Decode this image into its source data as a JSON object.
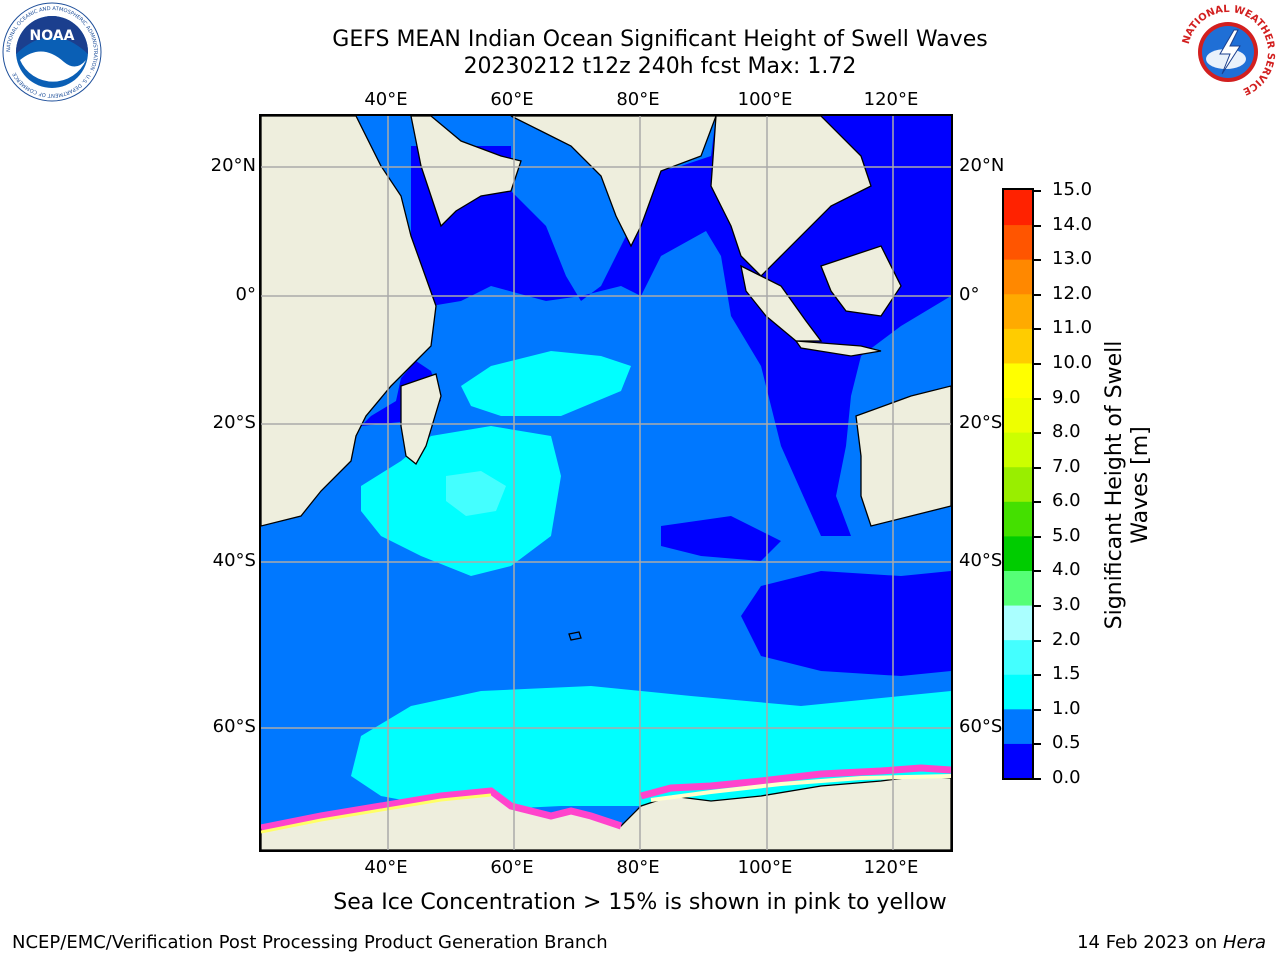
{
  "header": {
    "title": "GEFS MEAN Indian Ocean Significant Height of Swell Waves",
    "subtitle": "20230212 t12z 240h fcst   Max: 1.72"
  },
  "logos": {
    "left": "NOAA",
    "left_ring": "NATIONAL OCEANIC AND ATMOSPHERIC ADMINISTRATION · U.S. DEPARTMENT OF COMMERCE",
    "right_ring": "NATIONAL WEATHER SERVICE"
  },
  "map": {
    "lon_ticks_top": [
      "40°E",
      "60°E",
      "80°E",
      "100°E",
      "120°E"
    ],
    "lon_ticks_bottom": [
      "40°E",
      "60°E",
      "80°E",
      "100°E",
      "120°E"
    ],
    "lat_ticks_left": [
      "20°N",
      "0°",
      "20°S",
      "40°S",
      "60°S"
    ],
    "lat_ticks_right": [
      "20°N",
      "0°",
      "20°S",
      "40°S",
      "60°S"
    ],
    "colors": {
      "land": "#eeeedd",
      "ocean_0_05": "#0000ff",
      "ocean_05_1": "#0078ff",
      "ocean_1_15": "#00ffff",
      "ocean_15_2": "#44ffff",
      "sea_ice_pink": "#ff44cc",
      "sea_ice_yellow": "#ffff66",
      "grid": "#aaaaaa"
    }
  },
  "colorbar": {
    "title": "Significant Height of Swell Waves [m]",
    "tick_labels": [
      "0.0",
      "0.5",
      "1.0",
      "1.5",
      "2.0",
      "3.0",
      "4.0",
      "5.0",
      "6.0",
      "7.0",
      "8.0",
      "9.0",
      "10.0",
      "11.0",
      "12.0",
      "13.0",
      "14.0",
      "15.0"
    ],
    "colors": [
      "#0000ff",
      "#0078ff",
      "#00ffff",
      "#44ffff",
      "#aaffff",
      "#55ff77",
      "#00cc00",
      "#44e000",
      "#99ee00",
      "#ccff00",
      "#eeff00",
      "#ffff00",
      "#ffcc00",
      "#ffaa00",
      "#ff8800",
      "#ff5500",
      "#ff2200"
    ]
  },
  "footnote": "Sea Ice Concentration > 15% is shown in pink to yellow",
  "credits": {
    "left": "NCEP/EMC/Verification Post Processing Product Generation Branch",
    "right_date": "14 Feb 2023 on ",
    "right_host": "Hera"
  }
}
